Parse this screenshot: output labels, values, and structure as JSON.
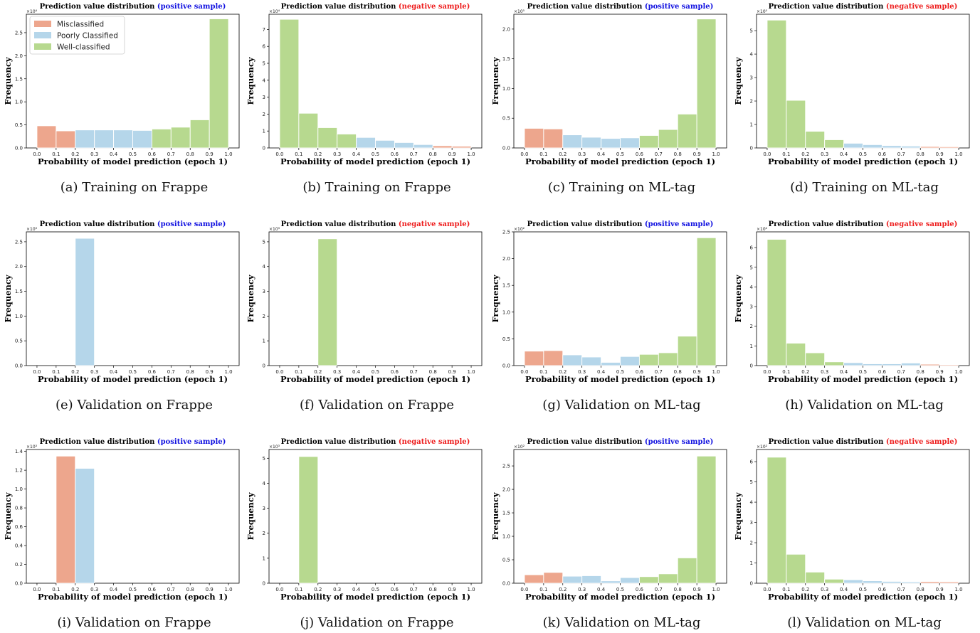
{
  "colors": {
    "Misclassified": "#eda68d",
    "Poorly Classified": "#b5d6ea",
    "Well-classified": "#b7d98f",
    "positive": "#1010e0",
    "negative": "#ee1c1c"
  },
  "legend": [
    "Misclassified",
    "Poorly Classified",
    "Well-classified"
  ],
  "title_prefix": "Prediction value distribution",
  "positive_title": "(positive sample)",
  "negative_title": "(negative sample)",
  "ylabel": "Frequency",
  "xlabel": "Probability of model prediction (epoch 1)",
  "xticks": [
    "0.0",
    "0.1",
    "0.2",
    "0.3",
    "0.4",
    "0.5",
    "0.6",
    "0.7",
    "0.8",
    "0.9",
    "1.0"
  ],
  "chart_data": [
    {
      "type": "bar",
      "caption": "(a) Training on Frappe",
      "sample": "positive",
      "multiplier": "×10⁴",
      "ylim": [
        0,
        2.9
      ],
      "yticks": [
        "0.0",
        "0.5",
        "1.0",
        "1.5",
        "2.0",
        "2.5"
      ],
      "values": [
        0.48,
        0.37,
        0.39,
        0.39,
        0.39,
        0.38,
        0.41,
        0.45,
        0.61,
        2.8
      ],
      "classes": [
        "Misclassified",
        "Misclassified",
        "Poorly Classified",
        "Poorly Classified",
        "Poorly Classified",
        "Poorly Classified",
        "Well-classified",
        "Well-classified",
        "Well-classified",
        "Well-classified"
      ],
      "legend": true
    },
    {
      "type": "bar",
      "caption": "(b) Training on Frappe",
      "sample": "negative",
      "multiplier": "×10⁴",
      "ylim": [
        0,
        7.9
      ],
      "yticks": [
        "0",
        "1",
        "2",
        "3",
        "4",
        "5",
        "6",
        "7"
      ],
      "values": [
        7.6,
        2.05,
        1.2,
        0.82,
        0.62,
        0.45,
        0.32,
        0.2,
        0.13,
        0.1
      ],
      "classes": [
        "Well-classified",
        "Well-classified",
        "Well-classified",
        "Well-classified",
        "Poorly Classified",
        "Poorly Classified",
        "Poorly Classified",
        "Poorly Classified",
        "Misclassified",
        "Misclassified"
      ]
    },
    {
      "type": "bar",
      "caption": "(c) Training on ML-tag",
      "sample": "positive",
      "multiplier": "×10⁵",
      "ylim": [
        0,
        2.25
      ],
      "yticks": [
        "0.0",
        "0.5",
        "1.0",
        "1.5",
        "2.0"
      ],
      "values": [
        0.33,
        0.32,
        0.22,
        0.18,
        0.16,
        0.17,
        0.21,
        0.31,
        0.57,
        2.17
      ],
      "classes": [
        "Misclassified",
        "Misclassified",
        "Poorly Classified",
        "Poorly Classified",
        "Poorly Classified",
        "Poorly Classified",
        "Well-classified",
        "Well-classified",
        "Well-classified",
        "Well-classified"
      ]
    },
    {
      "type": "bar",
      "caption": "(d) Training on ML-tag",
      "sample": "negative",
      "multiplier": "×10⁵",
      "ylim": [
        0,
        5.7
      ],
      "yticks": [
        "0",
        "1",
        "2",
        "3",
        "4",
        "5"
      ],
      "values": [
        5.45,
        2.03,
        0.71,
        0.35,
        0.2,
        0.14,
        0.1,
        0.08,
        0.06,
        0.05
      ],
      "classes": [
        "Well-classified",
        "Well-classified",
        "Well-classified",
        "Well-classified",
        "Poorly Classified",
        "Poorly Classified",
        "Poorly Classified",
        "Poorly Classified",
        "Misclassified",
        "Misclassified"
      ]
    },
    {
      "type": "bar",
      "caption": "(e) Validation on Frappe",
      "sample": "positive",
      "multiplier": "×10³",
      "ylim": [
        0,
        2.7
      ],
      "yticks": [
        "0.0",
        "0.5",
        "1.0",
        "1.5",
        "2.0",
        "2.5"
      ],
      "values": [
        0,
        0,
        2.57,
        0,
        0,
        0,
        0,
        0,
        0,
        0
      ],
      "classes": [
        "Misclassified",
        "Misclassified",
        "Poorly Classified",
        "Poorly Classified",
        "Poorly Classified",
        "Poorly Classified",
        "Well-classified",
        "Well-classified",
        "Well-classified",
        "Well-classified"
      ]
    },
    {
      "type": "bar",
      "caption": "(f) Validation on Frappe",
      "sample": "negative",
      "multiplier": "×10³",
      "ylim": [
        0,
        5.4
      ],
      "yticks": [
        "0",
        "1",
        "2",
        "3",
        "4",
        "5"
      ],
      "values": [
        0,
        0,
        5.12,
        0,
        0,
        0,
        0,
        0,
        0,
        0
      ],
      "classes": [
        "Well-classified",
        "Well-classified",
        "Well-classified",
        "Well-classified",
        "Poorly Classified",
        "Poorly Classified",
        "Poorly Classified",
        "Poorly Classified",
        "Misclassified",
        "Misclassified"
      ]
    },
    {
      "type": "bar",
      "caption": "(g) Validation on ML-tag",
      "sample": "positive",
      "multiplier": "×10²",
      "ylim": [
        0,
        2.5
      ],
      "yticks": [
        "0.0",
        "0.5",
        "1.0",
        "1.5",
        "2.0",
        "2.5"
      ],
      "values": [
        0.27,
        0.28,
        0.2,
        0.16,
        0.06,
        0.17,
        0.21,
        0.24,
        0.55,
        2.39
      ],
      "classes": [
        "Misclassified",
        "Misclassified",
        "Poorly Classified",
        "Poorly Classified",
        "Poorly Classified",
        "Poorly Classified",
        "Well-classified",
        "Well-classified",
        "Well-classified",
        "Well-classified"
      ]
    },
    {
      "type": "bar",
      "caption": "(h) Validation on ML-tag",
      "sample": "negative",
      "multiplier": "×10²",
      "ylim": [
        0,
        6.8
      ],
      "yticks": [
        "0",
        "1",
        "2",
        "3",
        "4",
        "5",
        "6"
      ],
      "values": [
        6.42,
        1.14,
        0.65,
        0.19,
        0.15,
        0.09,
        0.09,
        0.13,
        0.07,
        0.05
      ],
      "classes": [
        "Well-classified",
        "Well-classified",
        "Well-classified",
        "Well-classified",
        "Poorly Classified",
        "Poorly Classified",
        "Poorly Classified",
        "Poorly Classified",
        "Misclassified",
        "Misclassified"
      ]
    },
    {
      "type": "bar",
      "caption": "(i) Validation on Frappe",
      "sample": "positive",
      "multiplier": "×10³",
      "ylim": [
        0,
        1.42
      ],
      "yticks": [
        "0.0",
        "0.2",
        "0.4",
        "0.6",
        "0.8",
        "1.0",
        "1.2",
        "1.4"
      ],
      "values": [
        0,
        1.35,
        1.22,
        0,
        0,
        0,
        0,
        0,
        0,
        0
      ],
      "classes": [
        "Misclassified",
        "Misclassified",
        "Poorly Classified",
        "Poorly Classified",
        "Poorly Classified",
        "Poorly Classified",
        "Well-classified",
        "Well-classified",
        "Well-classified",
        "Well-classified"
      ]
    },
    {
      "type": "bar",
      "caption": "(j) Validation on Frappe",
      "sample": "negative",
      "multiplier": "×10³",
      "ylim": [
        0,
        5.35
      ],
      "yticks": [
        "0",
        "1",
        "2",
        "3",
        "4",
        "5"
      ],
      "values": [
        0,
        5.07,
        0,
        0,
        0,
        0,
        0,
        0,
        0,
        0
      ],
      "classes": [
        "Well-classified",
        "Well-classified",
        "Well-classified",
        "Well-classified",
        "Poorly Classified",
        "Poorly Classified",
        "Poorly Classified",
        "Poorly Classified",
        "Misclassified",
        "Misclassified"
      ]
    },
    {
      "type": "bar",
      "caption": "(k) Validation on ML-tag",
      "sample": "positive",
      "multiplier": "×10²",
      "ylim": [
        0,
        2.85
      ],
      "yticks": [
        "0.0",
        "0.5",
        "1.0",
        "1.5",
        "2.0",
        "2.5"
      ],
      "values": [
        0.18,
        0.23,
        0.15,
        0.16,
        0.05,
        0.12,
        0.14,
        0.2,
        0.54,
        2.71
      ],
      "classes": [
        "Misclassified",
        "Misclassified",
        "Poorly Classified",
        "Poorly Classified",
        "Poorly Classified",
        "Poorly Classified",
        "Well-classified",
        "Well-classified",
        "Well-classified",
        "Well-classified"
      ]
    },
    {
      "type": "bar",
      "caption": "(l) Validation on ML-tag",
      "sample": "negative",
      "multiplier": "×10²",
      "ylim": [
        0,
        6.6
      ],
      "yticks": [
        "0",
        "1",
        "2",
        "3",
        "4",
        "5",
        "6"
      ],
      "values": [
        6.22,
        1.43,
        0.55,
        0.2,
        0.17,
        0.12,
        0.09,
        0.07,
        0.08,
        0.07
      ],
      "classes": [
        "Well-classified",
        "Well-classified",
        "Well-classified",
        "Well-classified",
        "Poorly Classified",
        "Poorly Classified",
        "Poorly Classified",
        "Poorly Classified",
        "Misclassified",
        "Misclassified"
      ]
    }
  ]
}
